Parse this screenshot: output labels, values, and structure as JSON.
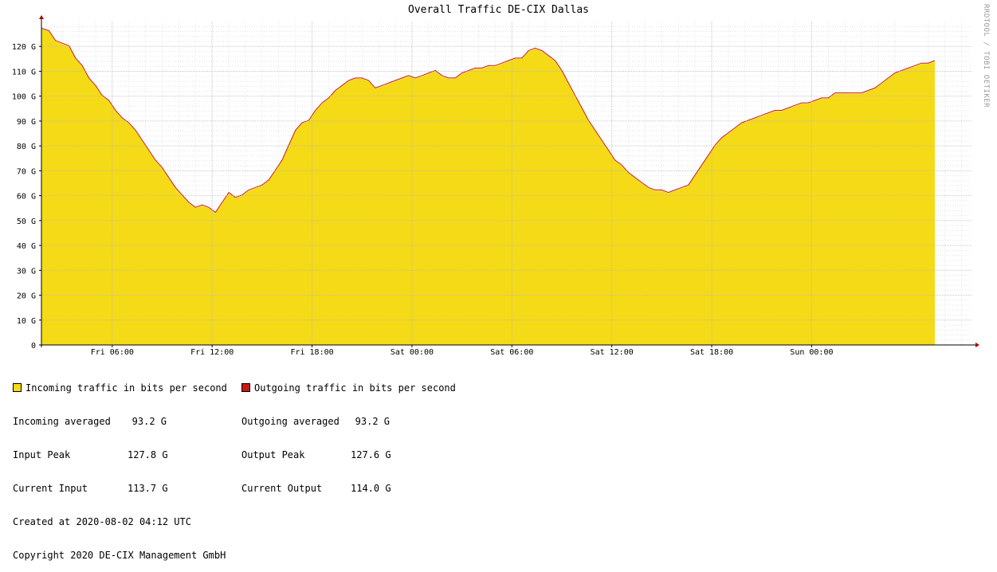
{
  "chart_data": {
    "type": "area",
    "title": "Overall Traffic DE-CIX Dallas",
    "watermark": "RRDTOOL / TOBI OETIKER",
    "y_unit_suffix": "G",
    "ylim": [
      0,
      130
    ],
    "yticks": [
      0,
      10,
      20,
      30,
      40,
      50,
      60,
      70,
      80,
      90,
      100,
      110,
      120
    ],
    "ytick_labels": [
      "0",
      "10 G",
      "20 G",
      "30 G",
      "40 G",
      "50 G",
      "60 G",
      "70 G",
      "80 G",
      "90 G",
      "100 G",
      "110 G",
      "120 G"
    ],
    "xlim_hours": [
      1.75,
      57.6
    ],
    "x_tick_labels": [
      {
        "hour": 6,
        "label": "Fri 06:00"
      },
      {
        "hour": 12,
        "label": "Fri 12:00"
      },
      {
        "hour": 18,
        "label": "Fri 18:00"
      },
      {
        "hour": 24,
        "label": "Sat 00:00"
      },
      {
        "hour": 30,
        "label": "Sat 06:00"
      },
      {
        "hour": 36,
        "label": "Sat 12:00"
      },
      {
        "hour": 42,
        "label": "Sat 18:00"
      },
      {
        "hour": 48,
        "label": "Sun 00:00"
      }
    ],
    "grid": true,
    "series": [
      {
        "name": "Incoming traffic in bits per second",
        "color": "#f5da17",
        "points": [
          [
            1.75,
            127
          ],
          [
            2.2,
            126
          ],
          [
            2.6,
            122
          ],
          [
            3,
            121
          ],
          [
            3.4,
            120
          ],
          [
            3.8,
            115
          ],
          [
            4.2,
            112
          ],
          [
            4.6,
            107
          ],
          [
            5,
            104
          ],
          [
            5.4,
            100
          ],
          [
            5.8,
            98
          ],
          [
            6.2,
            94
          ],
          [
            6.6,
            91
          ],
          [
            7,
            89
          ],
          [
            7.4,
            86
          ],
          [
            7.8,
            82
          ],
          [
            8.2,
            78
          ],
          [
            8.6,
            74
          ],
          [
            9,
            71
          ],
          [
            9.4,
            67
          ],
          [
            9.8,
            63
          ],
          [
            10.2,
            60
          ],
          [
            10.6,
            57
          ],
          [
            11,
            55
          ],
          [
            11.4,
            56
          ],
          [
            11.8,
            55
          ],
          [
            12.2,
            53
          ],
          [
            12.6,
            57
          ],
          [
            13,
            61
          ],
          [
            13.4,
            59
          ],
          [
            13.8,
            60
          ],
          [
            14.2,
            62
          ],
          [
            14.6,
            63
          ],
          [
            15,
            64
          ],
          [
            15.4,
            66
          ],
          [
            15.8,
            70
          ],
          [
            16.2,
            74
          ],
          [
            16.6,
            80
          ],
          [
            17,
            86
          ],
          [
            17.4,
            89
          ],
          [
            17.8,
            90
          ],
          [
            18.2,
            94
          ],
          [
            18.6,
            97
          ],
          [
            19,
            99
          ],
          [
            19.4,
            102
          ],
          [
            19.8,
            104
          ],
          [
            20.2,
            106
          ],
          [
            20.6,
            107
          ],
          [
            21,
            107
          ],
          [
            21.4,
            106
          ],
          [
            21.8,
            103
          ],
          [
            22.2,
            104
          ],
          [
            22.6,
            105
          ],
          [
            23,
            106
          ],
          [
            23.4,
            107
          ],
          [
            23.8,
            108
          ],
          [
            24.2,
            107
          ],
          [
            24.6,
            108
          ],
          [
            25,
            109
          ],
          [
            25.4,
            110
          ],
          [
            25.8,
            108
          ],
          [
            26.2,
            107
          ],
          [
            26.6,
            107
          ],
          [
            27,
            109
          ],
          [
            27.4,
            110
          ],
          [
            27.8,
            111
          ],
          [
            28.2,
            111
          ],
          [
            28.6,
            112
          ],
          [
            29,
            112
          ],
          [
            29.4,
            113
          ],
          [
            29.8,
            114
          ],
          [
            30.2,
            115
          ],
          [
            30.6,
            115
          ],
          [
            31,
            118
          ],
          [
            31.4,
            119
          ],
          [
            31.8,
            118
          ],
          [
            32.2,
            116
          ],
          [
            32.6,
            114
          ],
          [
            33,
            110
          ],
          [
            33.4,
            105
          ],
          [
            33.8,
            100
          ],
          [
            34.2,
            95
          ],
          [
            34.6,
            90
          ],
          [
            35,
            86
          ],
          [
            35.4,
            82
          ],
          [
            35.8,
            78
          ],
          [
            36.2,
            74
          ],
          [
            36.6,
            72
          ],
          [
            37,
            69
          ],
          [
            37.4,
            67
          ],
          [
            37.8,
            65
          ],
          [
            38.2,
            63
          ],
          [
            38.6,
            62
          ],
          [
            39,
            62
          ],
          [
            39.4,
            61
          ],
          [
            39.8,
            62
          ],
          [
            40.2,
            63
          ],
          [
            40.6,
            64
          ],
          [
            41,
            68
          ],
          [
            41.4,
            72
          ],
          [
            41.8,
            76
          ],
          [
            42.2,
            80
          ],
          [
            42.6,
            83
          ],
          [
            43,
            85
          ],
          [
            43.4,
            87
          ],
          [
            43.8,
            89
          ],
          [
            44.2,
            90
          ],
          [
            44.6,
            91
          ],
          [
            45,
            92
          ],
          [
            45.4,
            93
          ],
          [
            45.8,
            94
          ],
          [
            46.2,
            94
          ],
          [
            46.6,
            95
          ],
          [
            47,
            96
          ],
          [
            47.4,
            97
          ],
          [
            47.8,
            97
          ],
          [
            48.2,
            98
          ],
          [
            48.6,
            99
          ],
          [
            49,
            99
          ],
          [
            49.4,
            101
          ],
          [
            49.8,
            101
          ],
          [
            50.2,
            101
          ],
          [
            50.6,
            101
          ],
          [
            51,
            101
          ],
          [
            51.4,
            102
          ],
          [
            51.8,
            103
          ],
          [
            52.2,
            105
          ],
          [
            52.6,
            107
          ],
          [
            53,
            109
          ],
          [
            53.4,
            110
          ],
          [
            53.8,
            111
          ],
          [
            54.2,
            112
          ],
          [
            54.6,
            113
          ],
          [
            55,
            113
          ],
          [
            55.4,
            114
          ]
        ]
      },
      {
        "name": "Outgoing traffic in bits per second",
        "color": "#c41a1a"
      }
    ]
  },
  "legend": {
    "incoming": {
      "label": "Incoming traffic in bits per second",
      "color": "#f5da17",
      "averaged_label": "Incoming averaged",
      "averaged_value": "93.2 G",
      "peak_label": "Input Peak",
      "peak_value": "127.8 G",
      "current_label": "Current Input",
      "current_value": "113.7 G"
    },
    "outgoing": {
      "label": "Outgoing traffic in bits per second",
      "color": "#c41a1a",
      "averaged_label": "Outgoing averaged",
      "averaged_value": "93.2 G",
      "peak_label": "Output Peak",
      "peak_value": "127.6 G",
      "current_label": "Current Output",
      "current_value": "114.0 G"
    }
  },
  "footer": {
    "created": "Created at 2020-08-02 04:12 UTC",
    "copyright": "Copyright 2020 DE-CIX Management GmbH"
  }
}
